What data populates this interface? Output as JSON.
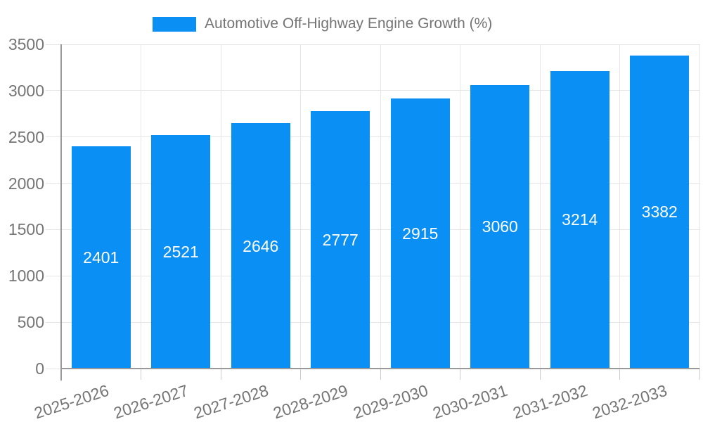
{
  "chart_data": {
    "type": "bar",
    "title": "",
    "legend": "Automotive Off-Highway Engine Growth (%)",
    "legend_position": "top",
    "categories": [
      "2025-2026",
      "2026-2027",
      "2027-2028",
      "2028-2029",
      "2029-2030",
      "2030-2031",
      "2031-2032",
      "2032-2033"
    ],
    "values": [
      2401,
      2521,
      2646,
      2777,
      2915,
      3060,
      3214,
      3382
    ],
    "value_labels_shown": true,
    "xlabel": "",
    "ylabel": "",
    "yticks": [
      0,
      500,
      1000,
      1500,
      2000,
      2500,
      3000,
      3500
    ],
    "ylim": [
      0,
      3500
    ],
    "grid": true,
    "colors": {
      "bar": "#0a8ff4",
      "axis_text": "#757575",
      "value_label": "#ffffff",
      "gridline": "#e6e6e6",
      "axis_line": "#999999",
      "background": "#ffffff"
    }
  }
}
